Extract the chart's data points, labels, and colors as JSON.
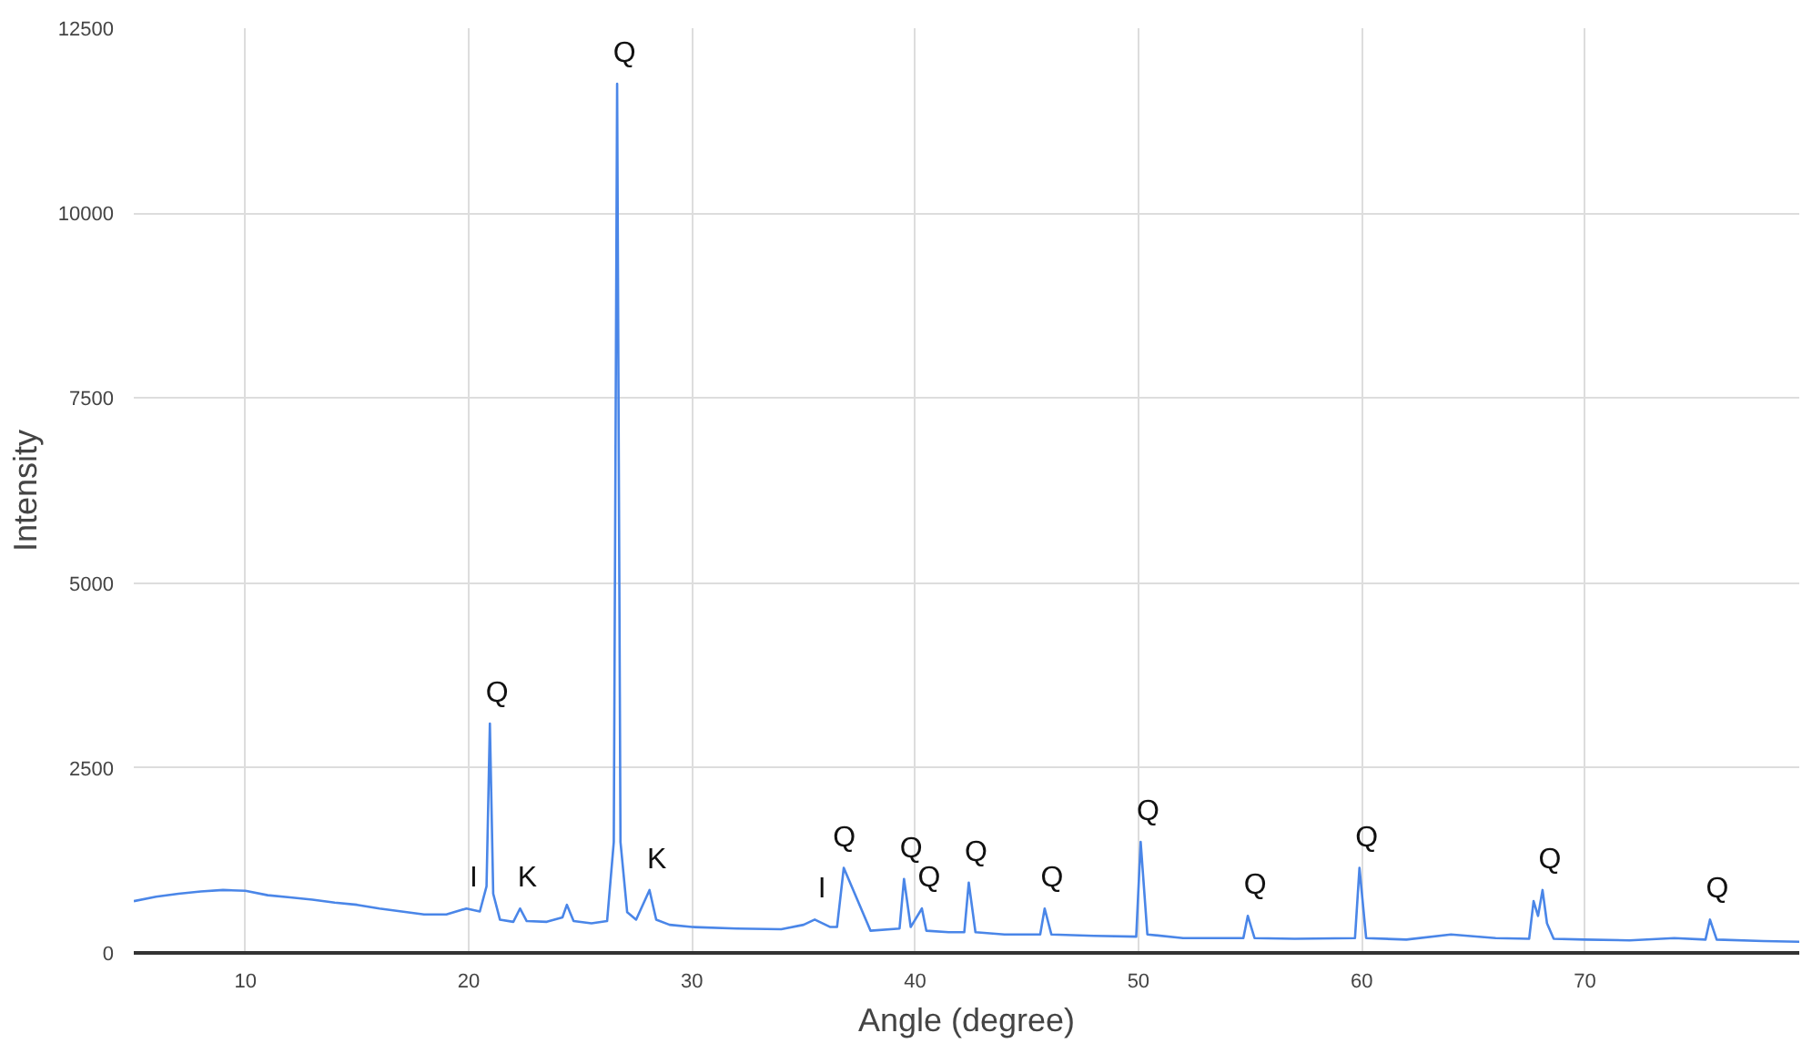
{
  "chart_data": {
    "type": "line",
    "xlabel": "Angle (degree)",
    "ylabel": "Intensity",
    "xlim": [
      5,
      79.6
    ],
    "ylim": [
      0,
      12500
    ],
    "xticks": [
      10,
      20,
      30,
      40,
      50,
      60,
      70
    ],
    "yticks": [
      0,
      2500,
      5000,
      7500,
      10000,
      12500
    ],
    "grid": true,
    "series": [
      {
        "color": "#4a86e8",
        "x": [
          5,
          6,
          7,
          8,
          9,
          10,
          11,
          12,
          13,
          14,
          15,
          16,
          17,
          18,
          19,
          19.9,
          20.5,
          20.8,
          20.95,
          21.1,
          21.4,
          22,
          22.3,
          22.6,
          23.5,
          24.2,
          24.4,
          24.7,
          25.5,
          26.2,
          26.5,
          26.65,
          26.8,
          27.1,
          27.5,
          28.1,
          28.4,
          29,
          30,
          32,
          34,
          35,
          35.5,
          36.2,
          36.5,
          36.8,
          38,
          39.3,
          39.5,
          39.8,
          40.3,
          40.5,
          41.5,
          42.2,
          42.4,
          42.7,
          44,
          45.6,
          45.8,
          46.1,
          48,
          49.9,
          50.1,
          50.4,
          52,
          54.7,
          54.9,
          55.2,
          57,
          59.7,
          59.9,
          60.2,
          62,
          64,
          66,
          67.5,
          67.7,
          67.9,
          68.1,
          68.3,
          68.6,
          70,
          72,
          74,
          75.4,
          75.6,
          75.9,
          78,
          79.6
        ],
        "values": [
          700,
          760,
          800,
          830,
          850,
          840,
          780,
          750,
          720,
          680,
          650,
          600,
          560,
          520,
          520,
          600,
          560,
          900,
          3100,
          800,
          450,
          420,
          600,
          430,
          420,
          480,
          650,
          430,
          400,
          430,
          1500,
          11750,
          1500,
          550,
          450,
          850,
          450,
          380,
          350,
          330,
          320,
          380,
          450,
          350,
          350,
          1150,
          300,
          330,
          1000,
          350,
          600,
          300,
          280,
          280,
          950,
          280,
          250,
          250,
          600,
          250,
          230,
          220,
          1500,
          250,
          200,
          200,
          500,
          200,
          190,
          200,
          1150,
          200,
          180,
          250,
          200,
          190,
          700,
          500,
          850,
          400,
          190,
          180,
          170,
          200,
          180,
          450,
          180,
          160,
          150
        ]
      }
    ],
    "annotations": [
      {
        "text": "I",
        "x": 19.9,
        "y": 600
      },
      {
        "text": "Q",
        "x": 20.95,
        "y": 3100
      },
      {
        "text": "K",
        "x": 22.3,
        "y": 600
      },
      {
        "text": "Q",
        "x": 26.65,
        "y": 11750
      },
      {
        "text": "K",
        "x": 28.1,
        "y": 850
      },
      {
        "text": "I",
        "x": 35.5,
        "y": 450
      },
      {
        "text": "Q",
        "x": 36.5,
        "y": 1150
      },
      {
        "text": "Q",
        "x": 39.5,
        "y": 1000
      },
      {
        "text": "Q",
        "x": 40.3,
        "y": 600
      },
      {
        "text": "Q",
        "x": 42.4,
        "y": 950
      },
      {
        "text": "Q",
        "x": 45.8,
        "y": 600
      },
      {
        "text": "Q",
        "x": 50.1,
        "y": 1500
      },
      {
        "text": "Q",
        "x": 54.9,
        "y": 500
      },
      {
        "text": "Q",
        "x": 59.9,
        "y": 1150
      },
      {
        "text": "Q",
        "x": 68.1,
        "y": 850
      },
      {
        "text": "Q",
        "x": 75.6,
        "y": 450
      }
    ]
  }
}
